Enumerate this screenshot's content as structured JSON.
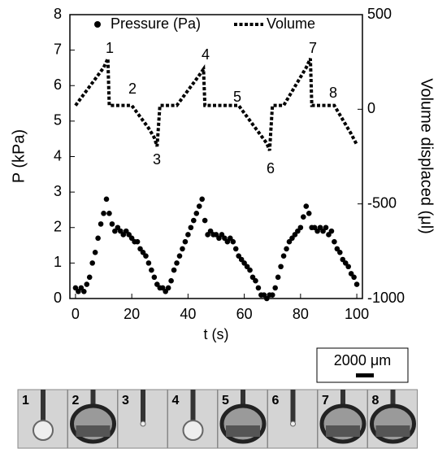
{
  "chart_data": {
    "type": "scatter-line",
    "xlabel": "t (s)",
    "ylabel": "P (kPa)",
    "y2label": "Volume displaced (μl)",
    "xlim": [
      -2,
      102
    ],
    "xticks": [
      0,
      20,
      40,
      60,
      80,
      100
    ],
    "ylim": [
      0,
      8
    ],
    "yticks": [
      0,
      1,
      2,
      3,
      4,
      5,
      6,
      7,
      8
    ],
    "y2lim": [
      -1000,
      500
    ],
    "y2ticks": [
      500,
      0,
      -500,
      -1000
    ],
    "series": [
      {
        "name": "Pressure (Pa)",
        "color": "#000000",
        "axis": "y",
        "x": [
          0,
          1,
          2,
          3,
          4,
          5,
          6,
          7,
          8,
          9,
          10,
          11,
          12,
          13,
          14,
          15,
          16,
          17,
          18,
          19,
          20,
          21,
          22,
          23,
          24,
          25,
          26,
          27,
          28,
          29,
          30,
          31,
          32,
          33,
          34,
          35,
          36,
          37,
          38,
          39,
          40,
          41,
          42,
          43,
          44,
          45,
          46,
          47,
          48,
          49,
          50,
          51,
          52,
          53,
          54,
          55,
          56,
          57,
          58,
          59,
          60,
          61,
          62,
          63,
          64,
          65,
          66,
          67,
          68,
          69,
          70,
          71,
          72,
          73,
          74,
          75,
          76,
          77,
          78,
          79,
          80,
          81,
          82,
          83,
          84,
          85,
          86,
          87,
          88,
          89,
          90,
          91,
          92,
          93,
          94,
          95,
          96,
          97,
          98,
          99,
          100
        ],
        "values": [
          0.3,
          0.2,
          0.3,
          0.2,
          0.4,
          0.6,
          1.0,
          1.3,
          1.7,
          2.1,
          2.4,
          2.8,
          2.4,
          2.1,
          1.9,
          2.0,
          1.9,
          1.8,
          1.9,
          1.8,
          1.7,
          1.6,
          1.6,
          1.4,
          1.3,
          1.2,
          1.0,
          0.8,
          0.6,
          0.4,
          0.3,
          0.3,
          0.2,
          0.3,
          0.5,
          0.8,
          1.0,
          1.2,
          1.4,
          1.6,
          1.8,
          2.0,
          2.2,
          2.4,
          2.6,
          2.8,
          2.2,
          1.8,
          1.9,
          1.8,
          1.8,
          1.7,
          1.8,
          1.7,
          1.6,
          1.7,
          1.6,
          1.4,
          1.2,
          1.1,
          1.0,
          0.9,
          0.8,
          0.6,
          0.5,
          0.3,
          0.1,
          0.1,
          0.0,
          0.1,
          0.1,
          0.3,
          0.6,
          0.9,
          1.2,
          1.4,
          1.6,
          1.7,
          1.8,
          1.9,
          2.0,
          2.3,
          2.6,
          2.4,
          2.0,
          2.0,
          1.9,
          2.0,
          1.9,
          2.0,
          1.8,
          1.9,
          1.6,
          1.4,
          1.3,
          1.1,
          1.0,
          0.9,
          0.7,
          0.6,
          0.4
        ]
      },
      {
        "name": "Volume",
        "color": "#000000",
        "axis": "y2",
        "x": [
          0,
          2,
          4,
          6,
          8,
          10,
          11.5,
          12,
          15,
          18,
          20,
          22,
          24,
          26,
          28,
          29,
          30,
          33,
          36,
          38,
          40,
          42,
          44,
          45.5,
          46,
          50,
          54,
          58,
          60,
          62,
          64,
          66,
          68,
          69,
          70,
          73,
          74,
          76,
          78,
          80,
          82,
          83.5,
          84,
          88,
          92,
          94,
          96,
          98,
          100
        ],
        "values": [
          20,
          60,
          100,
          140,
          180,
          220,
          268,
          20,
          20,
          20,
          20,
          -20,
          -60,
          -100,
          -150,
          -196,
          20,
          20,
          20,
          60,
          100,
          140,
          180,
          212,
          20,
          20,
          20,
          20,
          -20,
          -60,
          -100,
          -140,
          -180,
          -218,
          20,
          20,
          20,
          70,
          120,
          170,
          220,
          268,
          20,
          20,
          20,
          -30,
          -80,
          -130,
          -187
        ]
      }
    ],
    "annotations": [
      "1",
      "2",
      "3",
      "4",
      "5",
      "6",
      "7",
      "8"
    ],
    "scale_bar": "2000 μm",
    "panels": [
      "1",
      "2",
      "3",
      "4",
      "5",
      "6",
      "7",
      "8"
    ]
  }
}
